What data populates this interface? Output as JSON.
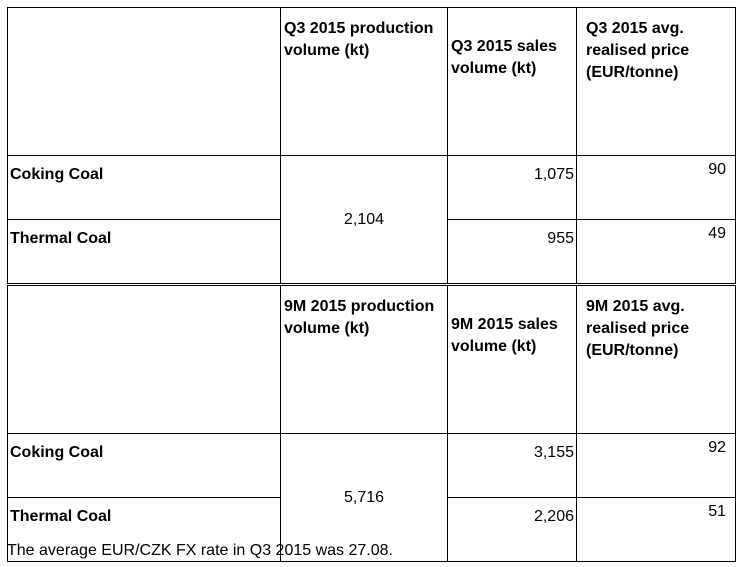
{
  "q3_table": {
    "headers": [
      "",
      "Q3 2015 production volume (kt)",
      "Q3 2015 sales volume (kt)",
      "Q3 2015 avg. realised price (EUR/tonne)"
    ],
    "production_volume": "2,104",
    "rows": [
      {
        "label": "Coking Coal",
        "sales": "1,075",
        "price": "90"
      },
      {
        "label": "Thermal Coal",
        "sales": "955",
        "price": "49"
      }
    ]
  },
  "nm_table": {
    "headers": [
      "",
      "9M 2015 production volume (kt)",
      "9M 2015 sales volume (kt)",
      "9M 2015 avg. realised price (EUR/tonne)"
    ],
    "production_volume": "5,716",
    "rows": [
      {
        "label": "Coking Coal",
        "sales": "3,155",
        "price": "92"
      },
      {
        "label": "Thermal Coal",
        "sales": "2,206",
        "price": "51"
      }
    ]
  },
  "footnote": "The average EUR/CZK FX rate in Q3 2015 was 27.08."
}
